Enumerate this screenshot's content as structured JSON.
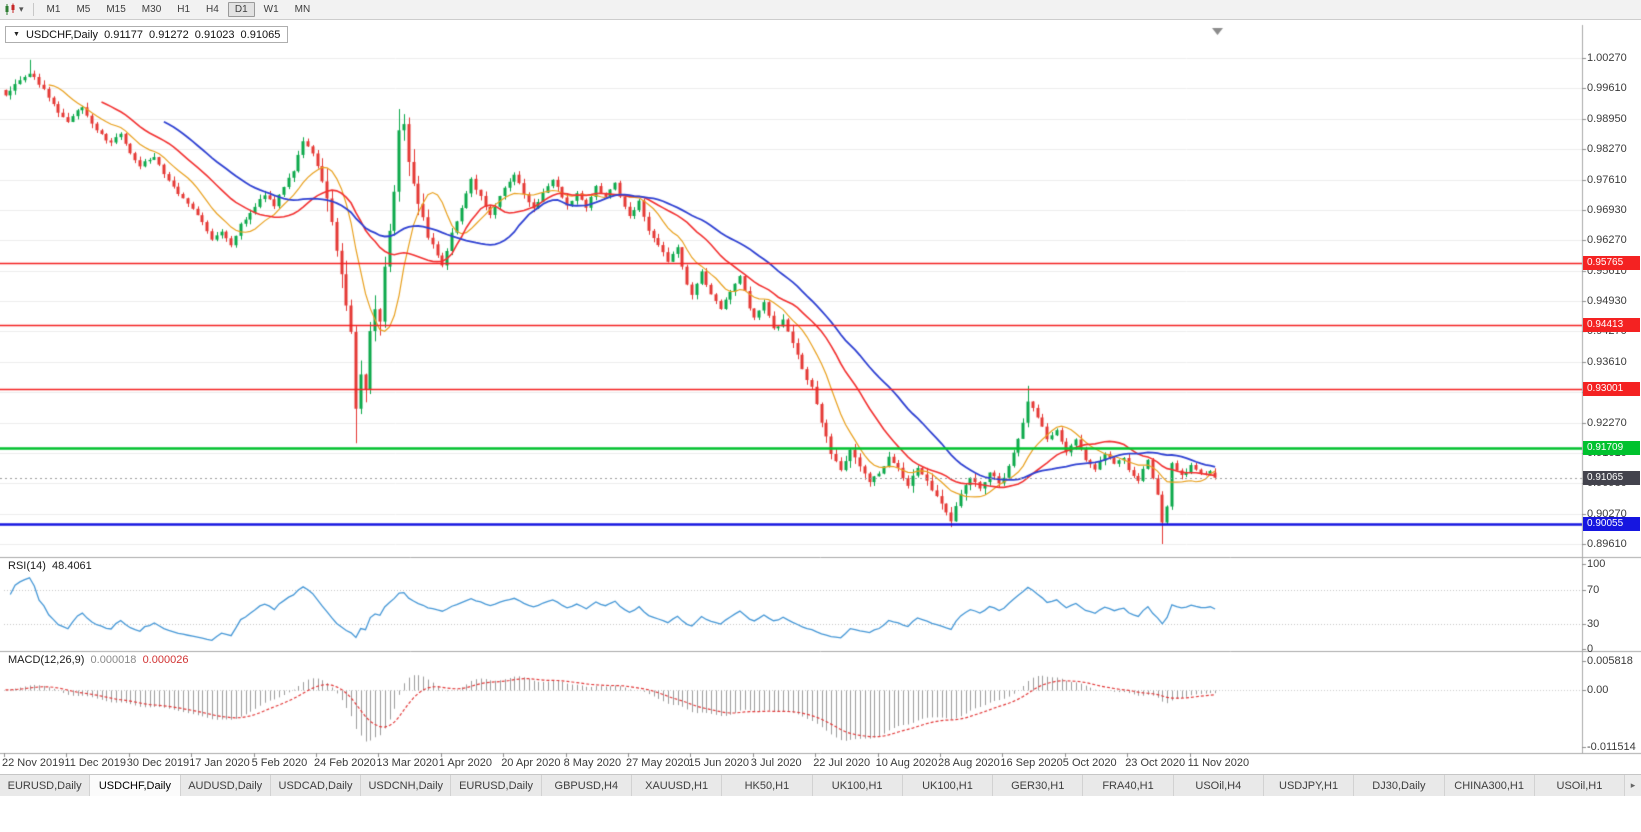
{
  "toolbar": {
    "timeframes": [
      "M1",
      "M5",
      "M15",
      "M30",
      "H1",
      "H4",
      "D1",
      "W1",
      "MN"
    ],
    "active_timeframe": "D1"
  },
  "icons": {
    "collapse_triangle": "▼",
    "dropdown_caret": "▾",
    "tab_scroll_right": "▸"
  },
  "chart": {
    "title": {
      "symbol": "USDCHF,Daily",
      "open": "0.91177",
      "high": "0.91272",
      "low": "0.91023",
      "close": "0.91065"
    },
    "price_axis": {
      "ticks": [
        "1.00270",
        "0.99610",
        "0.98950",
        "0.98270",
        "0.97610",
        "0.96930",
        "0.96270",
        "0.95610",
        "0.94930",
        "0.94270",
        "0.93610",
        "0.92930",
        "0.92270",
        "0.91610",
        "0.90930",
        "0.90270",
        "0.89610"
      ],
      "top_value": 1.0027,
      "bottom_value": 0.8961
    },
    "hlines": [
      {
        "price": 0.95765,
        "label": "0.95765",
        "color": "#f42222",
        "width": 1.5
      },
      {
        "price": 0.94413,
        "label": "0.94413",
        "color": "#f42222",
        "width": 1.5
      },
      {
        "price": 0.93001,
        "label": "0.93001",
        "color": "#f42222",
        "width": 1.5
      },
      {
        "price": 0.91709,
        "label": "0.91709",
        "color": "#00c22e",
        "width": 2.5
      },
      {
        "price": 0.90055,
        "label": "0.90055",
        "color": "#1616e0",
        "width": 2.5
      }
    ],
    "current_price": {
      "value": 0.91065,
      "label": "0.91065",
      "bg": "#43434d"
    },
    "dates": [
      "22 Nov 2019",
      "11 Dec 2019",
      "30 Dec 2019",
      "17 Jan 2020",
      "5 Feb 2020",
      "24 Feb 2020",
      "13 Mar 2020",
      "1 Apr 2020",
      "20 Apr 2020",
      "8 May 2020",
      "27 May 2020",
      "15 Jun 2020",
      "3 Jul 2020",
      "22 Jul 2020",
      "10 Aug 2020",
      "28 Aug 2020",
      "16 Sep 2020",
      "5 Oct 2020",
      "23 Oct 2020",
      "11 Nov 2020"
    ]
  },
  "chart_data": {
    "type": "candlestick",
    "symbol": "USDCHF",
    "timeframe": "Daily",
    "date_range": [
      "22 Nov 2019",
      "17 Nov 2020"
    ],
    "price_range": [
      0.8961,
      1.0027
    ],
    "n_candles": 253,
    "candles_per_date_label": 13,
    "last_candle": {
      "open": 0.91177,
      "high": 0.91272,
      "low": 0.91023,
      "close": 0.91065
    },
    "waypoints": [
      [
        0,
        0.9945
      ],
      [
        2,
        0.9972
      ],
      [
        5,
        0.9995
      ],
      [
        8,
        0.996
      ],
      [
        11,
        0.9906
      ],
      [
        13,
        0.989
      ],
      [
        16,
        0.9921
      ],
      [
        19,
        0.9866
      ],
      [
        22,
        0.9841
      ],
      [
        24,
        0.9863
      ],
      [
        26,
        0.9816
      ],
      [
        28,
        0.9791
      ],
      [
        31,
        0.9813
      ],
      [
        34,
        0.9756
      ],
      [
        37,
        0.9719
      ],
      [
        39,
        0.9697
      ],
      [
        41,
        0.9669
      ],
      [
        43,
        0.9626
      ],
      [
        45,
        0.9649
      ],
      [
        47,
        0.9616
      ],
      [
        49,
        0.9661
      ],
      [
        52,
        0.9701
      ],
      [
        54,
        0.9729
      ],
      [
        56,
        0.9701
      ],
      [
        58,
        0.9746
      ],
      [
        60,
        0.9781
      ],
      [
        62,
        0.9846
      ],
      [
        64,
        0.9821
      ],
      [
        66,
        0.9761
      ],
      [
        68,
        0.9661
      ],
      [
        70,
        0.9561
      ],
      [
        72,
        0.9421
      ],
      [
        73,
        0.9261
      ],
      [
        74,
        0.9341
      ],
      [
        75,
        0.9301
      ],
      [
        76,
        0.9421
      ],
      [
        77,
        0.9481
      ],
      [
        78,
        0.9441
      ],
      [
        79,
        0.9561
      ],
      [
        80,
        0.9651
      ],
      [
        81,
        0.9741
      ],
      [
        82,
        0.9861
      ],
      [
        83,
        0.9881
      ],
      [
        84,
        0.9801
      ],
      [
        85,
        0.9761
      ],
      [
        86,
        0.9701
      ],
      [
        88,
        0.9641
      ],
      [
        90,
        0.9591
      ],
      [
        91,
        0.9571
      ],
      [
        93,
        0.9641
      ],
      [
        95,
        0.9701
      ],
      [
        97,
        0.9761
      ],
      [
        99,
        0.9721
      ],
      [
        101,
        0.9681
      ],
      [
        103,
        0.9726
      ],
      [
        104,
        0.9741
      ],
      [
        106,
        0.9771
      ],
      [
        108,
        0.9731
      ],
      [
        110,
        0.9696
      ],
      [
        112,
        0.9731
      ],
      [
        114,
        0.9761
      ],
      [
        116,
        0.9721
      ],
      [
        117,
        0.9701
      ],
      [
        119,
        0.9731
      ],
      [
        121,
        0.9701
      ],
      [
        123,
        0.9746
      ],
      [
        125,
        0.9721
      ],
      [
        127,
        0.9751
      ],
      [
        129,
        0.9701
      ],
      [
        130,
        0.9681
      ],
      [
        132,
        0.9711
      ],
      [
        134,
        0.9651
      ],
      [
        136,
        0.9616
      ],
      [
        138,
        0.9581
      ],
      [
        140,
        0.9611
      ],
      [
        142,
        0.9531
      ],
      [
        143,
        0.9511
      ],
      [
        145,
        0.9556
      ],
      [
        147,
        0.9506
      ],
      [
        149,
        0.9476
      ],
      [
        151,
        0.9516
      ],
      [
        153,
        0.9551
      ],
      [
        155,
        0.9481
      ],
      [
        156,
        0.9461
      ],
      [
        158,
        0.9491
      ],
      [
        160,
        0.9431
      ],
      [
        162,
        0.9451
      ],
      [
        164,
        0.9401
      ],
      [
        166,
        0.9341
      ],
      [
        168,
        0.9301
      ],
      [
        170,
        0.9231
      ],
      [
        172,
        0.9161
      ],
      [
        174,
        0.9121
      ],
      [
        176,
        0.9171
      ],
      [
        178,
        0.9131
      ],
      [
        180,
        0.9101
      ],
      [
        182,
        0.9116
      ],
      [
        184,
        0.9156
      ],
      [
        186,
        0.9126
      ],
      [
        188,
        0.9086
      ],
      [
        190,
        0.9126
      ],
      [
        192,
        0.9096
      ],
      [
        194,
        0.9061
      ],
      [
        195,
        0.9046
      ],
      [
        197,
        0.9016
      ],
      [
        199,
        0.9066
      ],
      [
        201,
        0.9106
      ],
      [
        203,
        0.9081
      ],
      [
        205,
        0.9121
      ],
      [
        207,
        0.9096
      ],
      [
        208,
        0.9106
      ],
      [
        210,
        0.9161
      ],
      [
        212,
        0.9226
      ],
      [
        213,
        0.9271
      ],
      [
        215,
        0.9241
      ],
      [
        217,
        0.9191
      ],
      [
        219,
        0.9211
      ],
      [
        221,
        0.9161
      ],
      [
        223,
        0.9191
      ],
      [
        225,
        0.9146
      ],
      [
        227,
        0.9126
      ],
      [
        229,
        0.9161
      ],
      [
        231,
        0.9136
      ],
      [
        233,
        0.9151
      ],
      [
        234,
        0.9126
      ],
      [
        236,
        0.9101
      ],
      [
        238,
        0.9146
      ],
      [
        240,
        0.9071
      ],
      [
        241,
        0.9011
      ],
      [
        242,
        0.9041
      ],
      [
        243,
        0.9136
      ],
      [
        245,
        0.9111
      ],
      [
        247,
        0.9131
      ],
      [
        249,
        0.9113
      ],
      [
        251,
        0.9123
      ],
      [
        252,
        0.91065
      ]
    ],
    "spikes": [
      {
        "i": 5,
        "high": 1.0023
      },
      {
        "i": 73,
        "low": 0.9182
      },
      {
        "i": 82,
        "high": 0.9915
      },
      {
        "i": 197,
        "low": 0.8998
      },
      {
        "i": 213,
        "high": 0.9308
      },
      {
        "i": 241,
        "low": 0.8961
      }
    ],
    "colors": {
      "bull": "#0ca94b",
      "bear": "#e53935"
    },
    "moving_averages": [
      {
        "period": 10,
        "color": "#e8a01e"
      },
      {
        "period": 21,
        "color": "#f23131"
      },
      {
        "period": 34,
        "color": "#2f41d2"
      }
    ]
  },
  "rsi": {
    "label": "RSI(14)",
    "value": "48.4061",
    "period": 14,
    "line_color": "#4597d6",
    "scale_labels": [
      "100",
      "70",
      "30",
      "0"
    ],
    "scale_values": [
      100,
      70,
      30,
      0
    ],
    "level_lines": [
      70,
      30
    ]
  },
  "macd": {
    "label": "MACD(12,26,9)",
    "main_value": "0.000018",
    "signal_value": "0.000026",
    "fast": 12,
    "slow": 26,
    "signal": 9,
    "histogram_color": "#9c9c9c",
    "signal_color": "#e23b3b",
    "scale": {
      "max_label": "0.005818",
      "max": 0.005818,
      "zero_label": "0.00",
      "min_label": "-0.011514",
      "min": -0.011514
    }
  },
  "tabs": {
    "active_index": 1,
    "items": [
      {
        "label": "EURUSD,Daily"
      },
      {
        "label": "USDCHF,Daily"
      },
      {
        "label": "AUDUSD,Daily"
      },
      {
        "label": "USDCAD,Daily"
      },
      {
        "label": "USDCNH,Daily"
      },
      {
        "label": "EURUSD,Daily"
      },
      {
        "label": "GBPUSD,H4"
      },
      {
        "label": "XAUUSD,H1"
      },
      {
        "label": "HK50,H1"
      },
      {
        "label": "UK100,H1"
      },
      {
        "label": "UK100,H1"
      },
      {
        "label": "GER30,H1"
      },
      {
        "label": "FRA40,H1"
      },
      {
        "label": "USOil,H4"
      },
      {
        "label": "USDJPY,H1"
      },
      {
        "label": "DJ30,Daily"
      },
      {
        "label": "CHINA300,H1"
      },
      {
        "label": "USOil,H1"
      }
    ]
  }
}
